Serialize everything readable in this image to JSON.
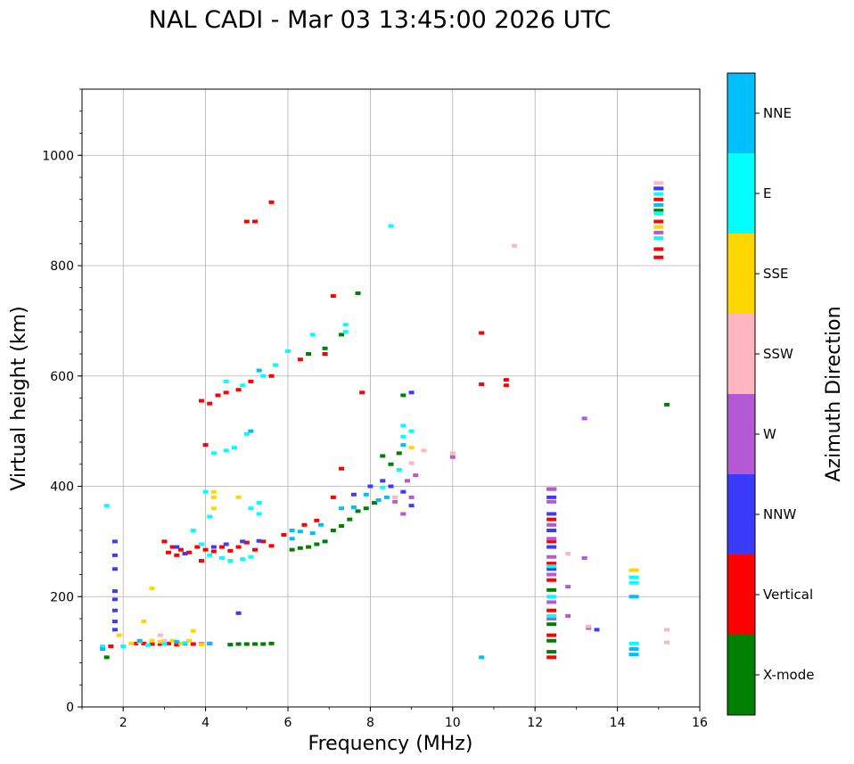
{
  "chart_data": {
    "type": "scatter",
    "title": "NAL CADI - Mar 03 13:45:00 2026 UTC",
    "xlabel": "Frequency (MHz)",
    "ylabel": "Virtual height (km)",
    "xlim": [
      1.0,
      16.0
    ],
    "ylim": [
      0,
      1120
    ],
    "xticks": [
      2,
      4,
      6,
      8,
      10,
      12,
      14,
      16
    ],
    "yticks": [
      0,
      200,
      400,
      600,
      800,
      1000
    ],
    "grid": true,
    "colorbar": {
      "label": "Azimuth Direction",
      "categories": [
        "X-mode",
        "Vertical",
        "NNW",
        "W",
        "SSW",
        "SSE",
        "E",
        "NNE"
      ],
      "colors": [
        "#008000",
        "#ff0000",
        "#3b3bff",
        "#b359d6",
        "#ffb6c1",
        "#ffd700",
        "#00ffff",
        "#00bfff"
      ]
    },
    "series": [
      {
        "name": "X-mode",
        "points": [
          [
            1.6,
            90
          ],
          [
            4.6,
            113
          ],
          [
            4.8,
            114
          ],
          [
            5.0,
            114
          ],
          [
            5.2,
            114
          ],
          [
            5.4,
            114
          ],
          [
            5.6,
            115
          ],
          [
            6.1,
            285
          ],
          [
            6.3,
            288
          ],
          [
            6.5,
            290
          ],
          [
            6.7,
            295
          ],
          [
            6.9,
            300
          ],
          [
            7.1,
            320
          ],
          [
            7.3,
            328
          ],
          [
            7.5,
            340
          ],
          [
            7.7,
            355
          ],
          [
            7.9,
            360
          ],
          [
            8.1,
            370
          ],
          [
            8.3,
            455
          ],
          [
            8.5,
            440
          ],
          [
            8.7,
            460
          ],
          [
            8.8,
            565
          ],
          [
            6.5,
            640
          ],
          [
            6.9,
            650
          ],
          [
            7.7,
            750
          ],
          [
            7.3,
            675
          ],
          [
            12.4,
            212
          ],
          [
            12.4,
            150
          ],
          [
            12.4,
            120
          ],
          [
            12.4,
            100
          ],
          [
            15.2,
            548
          ],
          [
            15.0,
            900
          ],
          [
            15.0,
            940
          ]
        ]
      },
      {
        "name": "Vertical",
        "points": [
          [
            1.7,
            110
          ],
          [
            2.3,
            115
          ],
          [
            2.5,
            115
          ],
          [
            2.7,
            114
          ],
          [
            2.9,
            114
          ],
          [
            3.1,
            115
          ],
          [
            3.3,
            113
          ],
          [
            3.5,
            115
          ],
          [
            3.7,
            114
          ],
          [
            3.9,
            114
          ],
          [
            4.1,
            115
          ],
          [
            3.0,
            300
          ],
          [
            3.1,
            280
          ],
          [
            3.2,
            290
          ],
          [
            3.3,
            275
          ],
          [
            3.4,
            285
          ],
          [
            3.6,
            280
          ],
          [
            3.8,
            290
          ],
          [
            3.9,
            265
          ],
          [
            4.0,
            285
          ],
          [
            4.2,
            282
          ],
          [
            4.4,
            290
          ],
          [
            4.6,
            283
          ],
          [
            4.8,
            290
          ],
          [
            5.0,
            298
          ],
          [
            5.2,
            285
          ],
          [
            5.4,
            300
          ],
          [
            5.6,
            292
          ],
          [
            5.9,
            312
          ],
          [
            6.4,
            330
          ],
          [
            6.7,
            338
          ],
          [
            7.1,
            380
          ],
          [
            7.3,
            432
          ],
          [
            3.9,
            555
          ],
          [
            4.1,
            550
          ],
          [
            4.3,
            565
          ],
          [
            4.5,
            570
          ],
          [
            4.8,
            575
          ],
          [
            5.1,
            590
          ],
          [
            5.6,
            600
          ],
          [
            6.3,
            630
          ],
          [
            6.9,
            640
          ],
          [
            7.1,
            745
          ],
          [
            7.8,
            570
          ],
          [
            5.0,
            880
          ],
          [
            5.2,
            880
          ],
          [
            5.6,
            915
          ],
          [
            4.0,
            475
          ],
          [
            10.7,
            678
          ],
          [
            10.7,
            585
          ],
          [
            11.3,
            593
          ],
          [
            11.3,
            583
          ],
          [
            12.4,
            395
          ],
          [
            12.4,
            340
          ],
          [
            12.4,
            300
          ],
          [
            12.4,
            260
          ],
          [
            12.4,
            230
          ],
          [
            12.4,
            175
          ],
          [
            12.4,
            130
          ],
          [
            12.4,
            90
          ],
          [
            15.0,
            815
          ],
          [
            15.0,
            830
          ],
          [
            15.0,
            880
          ],
          [
            15.0,
            920
          ]
        ]
      },
      {
        "name": "NNW",
        "points": [
          [
            1.8,
            300
          ],
          [
            1.8,
            275
          ],
          [
            1.8,
            250
          ],
          [
            1.8,
            210
          ],
          [
            1.8,
            195
          ],
          [
            1.8,
            175
          ],
          [
            1.8,
            155
          ],
          [
            1.8,
            140
          ],
          [
            3.3,
            290
          ],
          [
            3.5,
            278
          ],
          [
            4.2,
            290
          ],
          [
            4.5,
            295
          ],
          [
            4.8,
            170
          ],
          [
            4.9,
            300
          ],
          [
            5.3,
            301
          ],
          [
            7.6,
            385
          ],
          [
            8.0,
            400
          ],
          [
            8.3,
            410
          ],
          [
            8.5,
            400
          ],
          [
            8.8,
            390
          ],
          [
            9.0,
            570
          ],
          [
            9.0,
            365
          ],
          [
            12.4,
            380
          ],
          [
            12.4,
            350
          ],
          [
            12.4,
            320
          ],
          [
            12.4,
            290
          ],
          [
            12.4,
            250
          ],
          [
            13.5,
            140
          ],
          [
            15.0,
            940
          ]
        ]
      },
      {
        "name": "W",
        "points": [
          [
            8.6,
            372
          ],
          [
            8.9,
            410
          ],
          [
            9.0,
            380
          ],
          [
            9.1,
            420
          ],
          [
            8.8,
            350
          ],
          [
            10.0,
            453
          ],
          [
            12.4,
            395
          ],
          [
            12.4,
            372
          ],
          [
            12.4,
            330
          ],
          [
            12.4,
            305
          ],
          [
            12.4,
            272
          ],
          [
            12.4,
            240
          ],
          [
            12.4,
            190
          ],
          [
            12.4,
            160
          ],
          [
            12.8,
            165
          ],
          [
            12.8,
            218
          ],
          [
            13.2,
            270
          ],
          [
            13.2,
            523
          ],
          [
            13.3,
            143
          ],
          [
            15.0,
            860
          ]
        ]
      },
      {
        "name": "SSW",
        "points": [
          [
            2.9,
            130
          ],
          [
            3.0,
            120
          ],
          [
            8.6,
            380
          ],
          [
            9.0,
            442
          ],
          [
            9.3,
            465
          ],
          [
            10.0,
            460
          ],
          [
            11.5,
            836
          ],
          [
            12.8,
            278
          ],
          [
            13.3,
            146
          ],
          [
            15.2,
            117
          ],
          [
            15.2,
            140
          ],
          [
            15.0,
            950
          ]
        ]
      },
      {
        "name": "SSE",
        "points": [
          [
            1.9,
            130
          ],
          [
            2.2,
            115
          ],
          [
            2.4,
            118
          ],
          [
            2.7,
            120
          ],
          [
            2.9,
            118
          ],
          [
            3.2,
            120
          ],
          [
            3.4,
            115
          ],
          [
            3.6,
            120
          ],
          [
            3.9,
            113
          ],
          [
            2.5,
            155
          ],
          [
            2.7,
            215
          ],
          [
            3.7,
            138
          ],
          [
            4.2,
            360
          ],
          [
            4.2,
            380
          ],
          [
            4.2,
            390
          ],
          [
            4.8,
            380
          ],
          [
            9.0,
            470
          ],
          [
            14.4,
            248
          ],
          [
            15.0,
            870
          ]
        ]
      },
      {
        "name": "E",
        "points": [
          [
            1.5,
            110
          ],
          [
            2.0,
            110
          ],
          [
            2.6,
            112
          ],
          [
            3.0,
            114
          ],
          [
            3.5,
            116
          ],
          [
            1.6,
            365
          ],
          [
            3.7,
            320
          ],
          [
            3.9,
            295
          ],
          [
            4.1,
            275
          ],
          [
            4.4,
            270
          ],
          [
            4.6,
            265
          ],
          [
            4.9,
            268
          ],
          [
            5.1,
            272
          ],
          [
            5.3,
            370
          ],
          [
            5.3,
            350
          ],
          [
            5.1,
            360
          ],
          [
            4.1,
            345
          ],
          [
            4.0,
            390
          ],
          [
            4.2,
            460
          ],
          [
            4.5,
            465
          ],
          [
            4.7,
            470
          ],
          [
            5.0,
            495
          ],
          [
            4.5,
            590
          ],
          [
            4.9,
            583
          ],
          [
            5.4,
            600
          ],
          [
            5.7,
            620
          ],
          [
            6.0,
            645
          ],
          [
            6.6,
            675
          ],
          [
            7.4,
            680
          ],
          [
            7.4,
            693
          ],
          [
            8.5,
            872
          ],
          [
            8.3,
            398
          ],
          [
            8.7,
            430
          ],
          [
            8.8,
            510
          ],
          [
            8.8,
            490
          ],
          [
            9.0,
            500
          ],
          [
            12.4,
            255
          ],
          [
            12.4,
            200
          ],
          [
            12.4,
            165
          ],
          [
            14.4,
            235
          ],
          [
            14.4,
            225
          ],
          [
            14.4,
            115
          ],
          [
            14.4,
            95
          ],
          [
            15.0,
            850
          ],
          [
            15.0,
            895
          ],
          [
            15.0,
            930
          ]
        ]
      },
      {
        "name": "NNE",
        "points": [
          [
            1.5,
            105
          ],
          [
            2.4,
            120
          ],
          [
            3.3,
            118
          ],
          [
            4.1,
            115
          ],
          [
            5.1,
            500
          ],
          [
            5.3,
            610
          ],
          [
            6.1,
            305
          ],
          [
            6.1,
            320
          ],
          [
            6.3,
            318
          ],
          [
            6.6,
            315
          ],
          [
            6.8,
            330
          ],
          [
            7.3,
            360
          ],
          [
            7.6,
            362
          ],
          [
            7.9,
            385
          ],
          [
            8.2,
            375
          ],
          [
            8.4,
            380
          ],
          [
            8.8,
            475
          ],
          [
            10.7,
            90
          ],
          [
            14.4,
            200
          ],
          [
            14.4,
            95
          ],
          [
            14.4,
            105
          ],
          [
            15.0,
            910
          ]
        ]
      }
    ]
  }
}
